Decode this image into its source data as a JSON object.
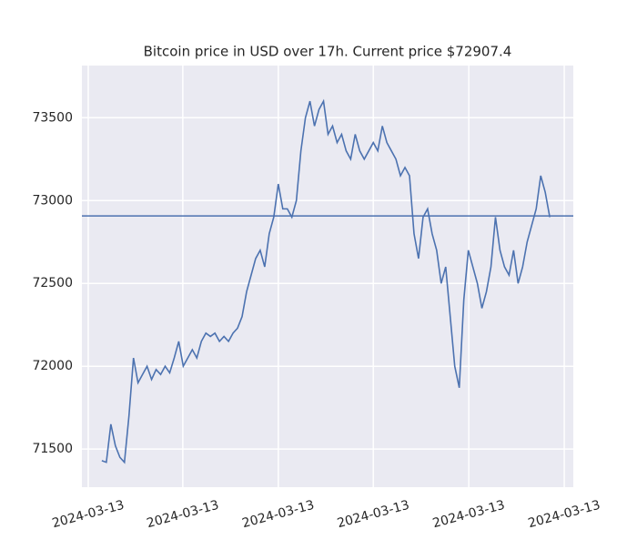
{
  "chart_data": {
    "type": "line",
    "title": "Bitcoin price in USD over 17h. Current price $72907.4",
    "values": [
      71430,
      71420,
      71650,
      71520,
      71450,
      71420,
      71700,
      72050,
      71900,
      71950,
      72000,
      71920,
      71980,
      71950,
      72000,
      71960,
      72050,
      72150,
      72000,
      72050,
      72100,
      72050,
      72150,
      72200,
      72180,
      72200,
      72150,
      72180,
      72150,
      72200,
      72230,
      72300,
      72450,
      72550,
      72650,
      72700,
      72600,
      72800,
      72900,
      73100,
      72950,
      72950,
      72900,
      73000,
      73300,
      73500,
      73600,
      73450,
      73550,
      73600,
      73400,
      73450,
      73350,
      73400,
      73300,
      73250,
      73400,
      73300,
      73250,
      73300,
      73350,
      73300,
      73450,
      73350,
      73300,
      73250,
      73150,
      73200,
      73150,
      72800,
      72650,
      72900,
      72950,
      72800,
      72700,
      72500,
      72600,
      72300,
      72000,
      71870,
      72400,
      72700,
      72600,
      72500,
      72350,
      72450,
      72600,
      72900,
      72700,
      72600,
      72550,
      72700,
      72500,
      72600,
      72750,
      72850,
      72950,
      73150,
      73050,
      72900
    ],
    "color": "#4c72b0",
    "hline": 72907.4,
    "xlim": [
      -4.4,
      104.2
    ],
    "xticks": [
      {
        "value": -3.0,
        "label": "2024-03-13"
      },
      {
        "value": 17.9,
        "label": "2024-03-13"
      },
      {
        "value": 39.0,
        "label": "2024-03-13"
      },
      {
        "value": 60.0,
        "label": "2024-03-13"
      },
      {
        "value": 81.1,
        "label": "2024-03-13"
      },
      {
        "value": 102.2,
        "label": "2024-03-13"
      }
    ],
    "ylim": [
      71270,
      73815
    ],
    "yticks": [
      71500,
      72000,
      72500,
      73000,
      73500
    ],
    "grid": true
  }
}
